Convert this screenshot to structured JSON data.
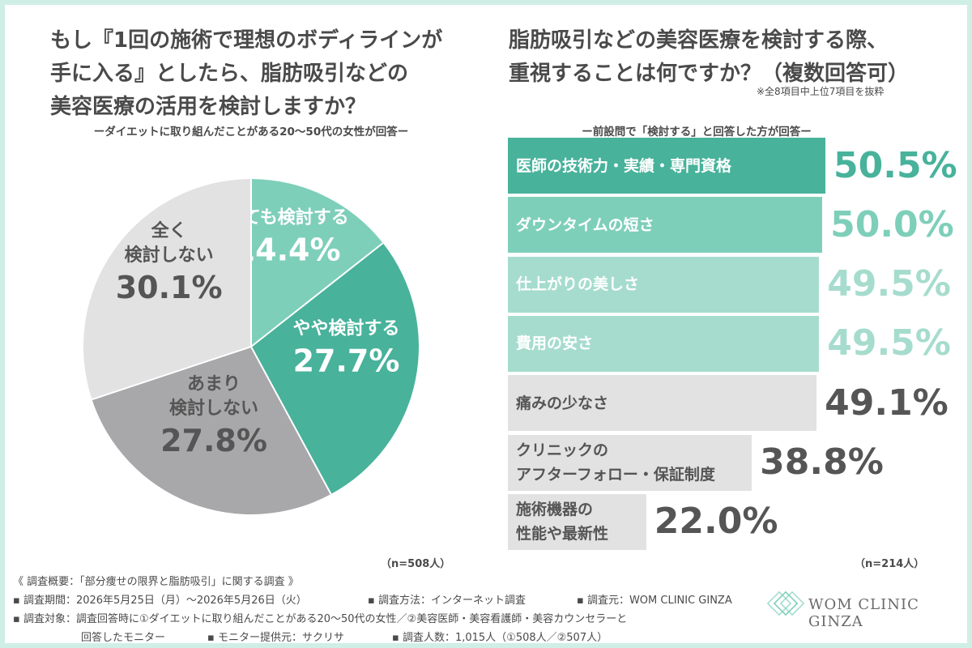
{
  "left": {
    "title_lines": [
      "もし『1回の施術で理想のボディラインが",
      "手に入る』としたら、脂肪吸引などの",
      "美容医療の活用を検討しますか？"
    ],
    "subtitle": "ーダイエットに取り組んだことがある20〜50代の女性が回答ー",
    "n_label": "（n=508人）"
  },
  "right": {
    "title_lines": [
      "脂肪吸引などの美容医療を検討する際、",
      "重視することは何ですか？（複数回答可）"
    ],
    "note": "※全8項目中上位7項目を抜粋",
    "subtitle": "ー前設問で「検討する」と回答した方が回答ー",
    "n_label": "（n=214人）"
  },
  "chart_data": [
    {
      "type": "pie",
      "categories": [
        "とても検討する",
        "やや検討する",
        "あまり検討しない",
        "全く検討しない"
      ],
      "values": [
        14.4,
        27.7,
        27.8,
        30.1
      ],
      "value_labels": [
        "14.4%",
        "27.7%",
        "27.8%",
        "30.1%"
      ],
      "label_lines": [
        [
          "とても検討する"
        ],
        [
          "やや検討する"
        ],
        [
          "あまり",
          "検討しない"
        ],
        [
          "全く",
          "検討しない"
        ]
      ],
      "colors": [
        "#7ecfba",
        "#48b29b",
        "#a8a7a9",
        "#e2e2e3"
      ],
      "label_colors": [
        "#ffffff",
        "#ffffff",
        "#555555",
        "#555555"
      ]
    },
    {
      "type": "bar",
      "orientation": "horizontal",
      "categories": [
        "医師の技術力・実績・専門資格",
        "ダウンタイムの短さ",
        "仕上がりの美しさ",
        "費用の安さ",
        "痛みの少なさ",
        "クリニックのアフターフォロー・保証制度",
        "施術機器の性能や最新性"
      ],
      "category_lines": [
        [
          "医師の技術力・実績・専門資格"
        ],
        [
          "ダウンタイムの短さ"
        ],
        [
          "仕上がりの美しさ"
        ],
        [
          "費用の安さ"
        ],
        [
          "痛みの少なさ"
        ],
        [
          "クリニックの",
          "アフターフォロー・保証制度"
        ],
        [
          "施術機器の",
          "性能や最新性"
        ]
      ],
      "values": [
        50.5,
        50.0,
        49.5,
        49.5,
        49.1,
        38.8,
        22.0
      ],
      "value_labels": [
        "50.5%",
        "50.0%",
        "49.5%",
        "49.5%",
        "49.1%",
        "38.8%",
        "22.0%"
      ],
      "colors": [
        "#48b29b",
        "#7ecfba",
        "#a6dccd",
        "#a6dccd",
        "#e2e2e3",
        "#e2e2e3",
        "#e2e2e3"
      ],
      "value_colors": [
        "#48b29b",
        "#7ecfba",
        "#a6dccd",
        "#a6dccd",
        "#555555",
        "#555555",
        "#555555"
      ],
      "label_colors": [
        "#ffffff",
        "#ffffff",
        "#ffffff",
        "#ffffff",
        "#555555",
        "#555555",
        "#555555"
      ]
    }
  ],
  "footer": {
    "line1": "《 調査概要：「部分痩せの限界と脂肪吸引」に関する調査 》",
    "period": "▪ 調査期間：2026年5月25日（月）〜2026年5月26日（火）",
    "method": "▪ 調査方法：インターネット調査",
    "source": "▪ 調査元：WOM CLINIC GINZA",
    "target_a": "▪ 調査対象：調査回答時に①ダイエットに取り組んだことがある20〜50代の女性／②美容医師・美容看護師・美容カウンセラーと",
    "target_b": "回答したモニター",
    "provider": "▪ モニター提供元：サクリサ",
    "count": "▪ 調査人数：1,015人（①508人／②507人）"
  },
  "logo": {
    "text": "WOM CLINIC GINZA",
    "color": "#7ecfba"
  }
}
